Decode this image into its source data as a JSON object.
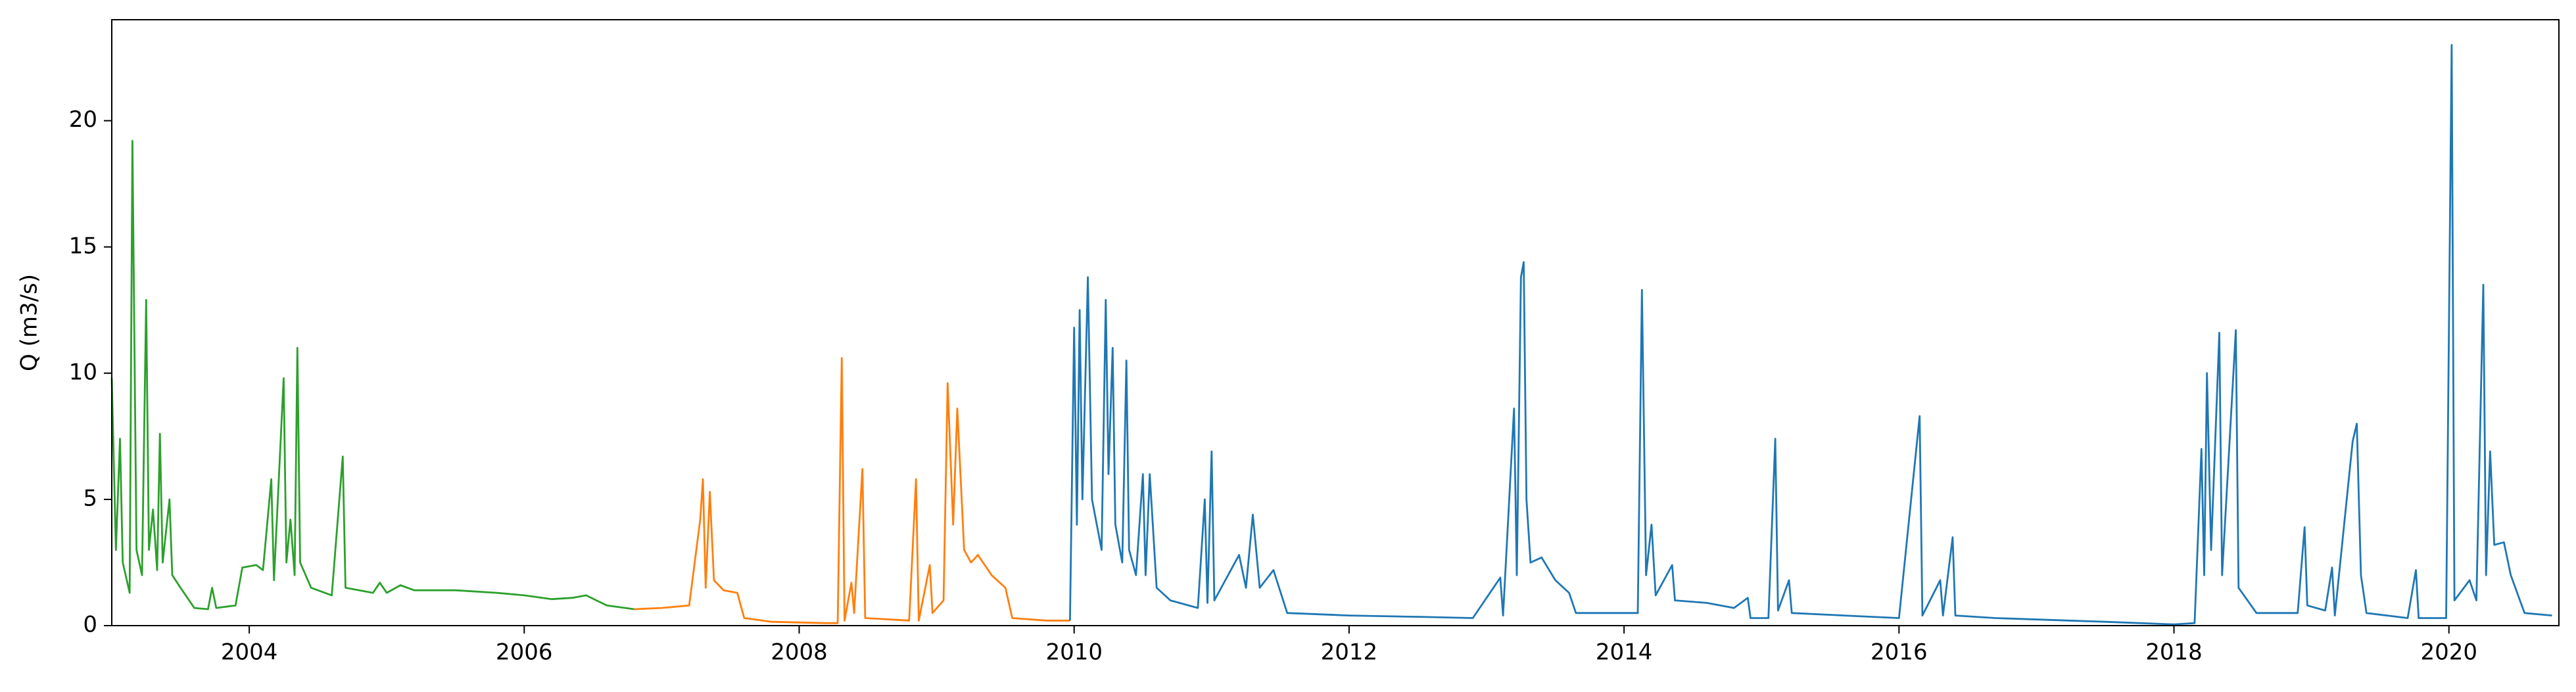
{
  "chart_data": {
    "type": "line",
    "y_label": "Q (m3/s)",
    "xlim": [
      2003.0,
      2020.8
    ],
    "xticks": [
      2004,
      2006,
      2008,
      2010,
      2012,
      2014,
      2016,
      2018,
      2020
    ],
    "ylim": [
      0,
      24
    ],
    "yticks": [
      0,
      5,
      10,
      15,
      20
    ],
    "grid": false,
    "series": [
      {
        "color": "#2ca02c",
        "x": [
          2003.0,
          2003.03,
          2003.06,
          2003.08,
          2003.13,
          2003.15,
          2003.18,
          2003.22,
          2003.25,
          2003.27,
          2003.3,
          2003.33,
          2003.35,
          2003.37,
          2003.42,
          2003.44,
          2003.5,
          2003.6,
          2003.7,
          2003.73,
          2003.76,
          2003.9,
          2003.95,
          2004.05,
          2004.1,
          2004.16,
          2004.18,
          2004.25,
          2004.27,
          2004.3,
          2004.33,
          2004.35,
          2004.37,
          2004.45,
          2004.6,
          2004.68,
          2004.7,
          2004.9,
          2004.95,
          2005.0,
          2005.1,
          2005.2,
          2005.5,
          2005.8,
          2006.0,
          2006.2,
          2006.35,
          2006.45,
          2006.6,
          2006.8
        ],
        "values": [
          9.8,
          3,
          7.4,
          2.5,
          1.3,
          19.2,
          3,
          2.0,
          12.9,
          3,
          4.6,
          2.2,
          7.6,
          2.5,
          5.0,
          2.0,
          1.5,
          0.7,
          0.65,
          1.5,
          0.7,
          0.8,
          2.3,
          2.4,
          2.2,
          5.8,
          1.8,
          9.8,
          2.5,
          4.2,
          2.0,
          11.0,
          2.5,
          1.5,
          1.2,
          6.7,
          1.5,
          1.3,
          1.7,
          1.3,
          1.6,
          1.4,
          1.4,
          1.3,
          1.2,
          1.05,
          1.1,
          1.2,
          0.8,
          0.65
        ]
      },
      {
        "color": "#ff7f0e",
        "x": [
          2006.8,
          2007.0,
          2007.2,
          2007.28,
          2007.3,
          2007.32,
          2007.35,
          2007.38,
          2007.45,
          2007.55,
          2007.6,
          2007.8,
          2008.2,
          2008.28,
          2008.31,
          2008.33,
          2008.38,
          2008.4,
          2008.46,
          2008.48,
          2008.8,
          2008.85,
          2008.87,
          2008.95,
          2008.97,
          2009.05,
          2009.08,
          2009.12,
          2009.15,
          2009.2,
          2009.25,
          2009.3,
          2009.4,
          2009.5,
          2009.55,
          2009.8,
          2009.97
        ],
        "values": [
          0.65,
          0.7,
          0.8,
          4.2,
          5.8,
          1.5,
          5.3,
          1.8,
          1.4,
          1.3,
          0.3,
          0.15,
          0.1,
          0.1,
          10.6,
          0.2,
          1.7,
          0.5,
          6.2,
          0.3,
          0.2,
          5.8,
          0.2,
          2.4,
          0.5,
          1.0,
          9.6,
          4,
          8.6,
          3,
          2.5,
          2.8,
          2.0,
          1.5,
          0.3,
          0.2,
          0.2
        ]
      },
      {
        "color": "#1f77b4",
        "x": [
          2009.97,
          2010.0,
          2010.02,
          2010.04,
          2010.06,
          2010.1,
          2010.13,
          2010.2,
          2010.23,
          2010.25,
          2010.28,
          2010.3,
          2010.35,
          2010.38,
          2010.4,
          2010.45,
          2010.5,
          2010.52,
          2010.55,
          2010.6,
          2010.7,
          2010.9,
          2010.95,
          2010.97,
          2011.0,
          2011.02,
          2011.2,
          2011.25,
          2011.3,
          2011.35,
          2011.45,
          2011.55,
          2012.0,
          2012.5,
          2012.9,
          2013.1,
          2013.12,
          2013.2,
          2013.22,
          2013.25,
          2013.27,
          2013.29,
          2013.32,
          2013.4,
          2013.5,
          2013.6,
          2013.65,
          2014.1,
          2014.13,
          2014.16,
          2014.2,
          2014.23,
          2014.35,
          2014.37,
          2014.6,
          2014.8,
          2014.9,
          2014.92,
          2015.05,
          2015.1,
          2015.12,
          2015.2,
          2015.22,
          2015.6,
          2016.0,
          2016.15,
          2016.17,
          2016.3,
          2016.32,
          2016.39,
          2016.41,
          2016.7,
          2017.5,
          2018.0,
          2018.15,
          2018.2,
          2018.22,
          2018.24,
          2018.27,
          2018.33,
          2018.35,
          2018.45,
          2018.47,
          2018.6,
          2018.9,
          2018.95,
          2018.97,
          2019.1,
          2019.15,
          2019.17,
          2019.3,
          2019.33,
          2019.36,
          2019.4,
          2019.7,
          2019.76,
          2019.78,
          2019.98,
          2020.02,
          2020.04,
          2020.15,
          2020.2,
          2020.25,
          2020.27,
          2020.3,
          2020.33,
          2020.4,
          2020.45,
          2020.55,
          2020.75
        ],
        "values": [
          0.2,
          11.8,
          4,
          12.5,
          5,
          13.8,
          5,
          3,
          12.9,
          6,
          11,
          4,
          2.5,
          10.5,
          3,
          2,
          6,
          2,
          6,
          1.5,
          1.0,
          0.7,
          5.0,
          0.9,
          6.9,
          1,
          2.8,
          1.5,
          4.4,
          1.5,
          2.2,
          0.5,
          0.4,
          0.35,
          0.3,
          1.9,
          0.4,
          8.6,
          2,
          13.8,
          14.4,
          5,
          2.5,
          2.7,
          1.8,
          1.3,
          0.5,
          0.5,
          13.3,
          2,
          4,
          1.2,
          2.4,
          1.0,
          0.9,
          0.7,
          1.1,
          0.3,
          0.3,
          7.4,
          0.6,
          1.8,
          0.5,
          0.4,
          0.3,
          8.3,
          0.4,
          1.8,
          0.4,
          3.5,
          0.4,
          0.3,
          0.15,
          0.05,
          0.1,
          7,
          2,
          10,
          3,
          11.6,
          2,
          11.7,
          1.5,
          0.5,
          0.5,
          3.9,
          0.8,
          0.6,
          2.3,
          0.4,
          7.3,
          8.0,
          2,
          0.5,
          0.3,
          2.2,
          0.3,
          0.3,
          23,
          1,
          1.8,
          1.0,
          13.5,
          2,
          6.9,
          3.2,
          3.3,
          2,
          0.5,
          0.4
        ]
      }
    ]
  }
}
